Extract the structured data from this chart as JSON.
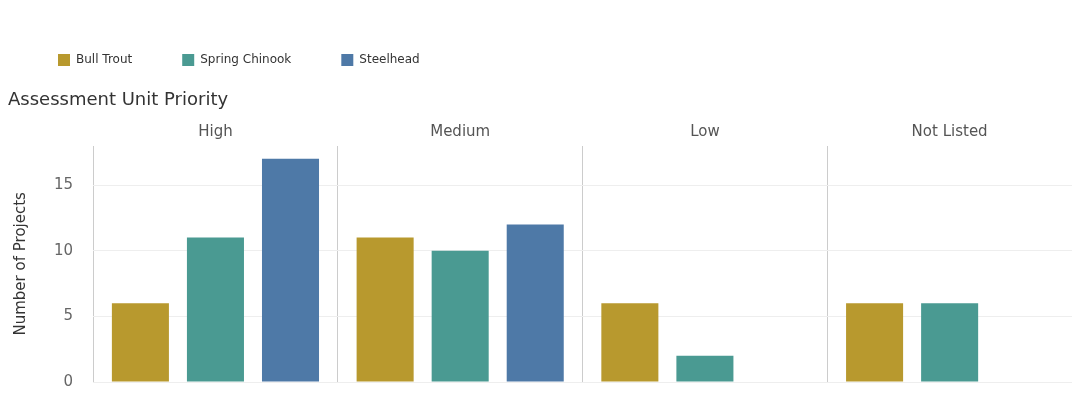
{
  "chart_data": {
    "type": "bar",
    "title": "Assessment Unit Priority",
    "ylabel": "Number of Projects",
    "categories": [
      "High",
      "Medium",
      "Low",
      "Not Listed"
    ],
    "series": [
      {
        "name": "Bull Trout",
        "color": "#b8992e",
        "values": [
          6,
          11,
          6,
          6
        ]
      },
      {
        "name": "Spring Chinook",
        "color": "#4a9a92",
        "values": [
          11,
          10,
          2,
          6
        ]
      },
      {
        "name": "Steelhead",
        "color": "#4e79a7",
        "values": [
          17,
          12,
          null,
          null
        ]
      }
    ],
    "ylim": [
      0,
      18
    ],
    "yticks": [
      0,
      5,
      10,
      15
    ],
    "grid": "y",
    "legend": "top left"
  }
}
